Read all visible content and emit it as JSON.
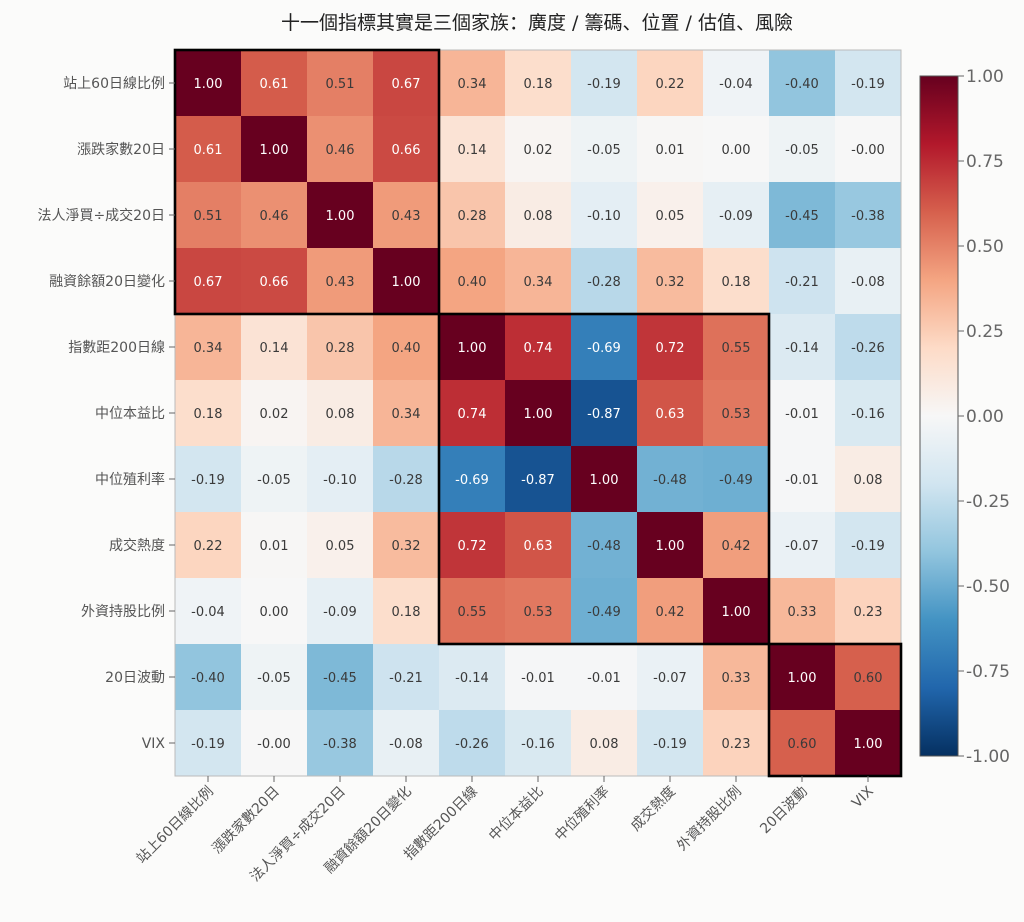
{
  "chart_data": {
    "type": "heatmap",
    "title": "十一個指標其實是三個家族：廣度 / 籌碼、位置 / 估值、風險",
    "row_labels": [
      "站上60日線比例",
      "漲跌家數20日",
      "法人淨買÷成交20日",
      "融資餘額20日變化",
      "指數距200日線",
      "中位本益比",
      "中位殖利率",
      "成交熱度",
      "外資持股比例",
      "20日波動",
      "VIX"
    ],
    "col_labels": [
      "站上60日線比例",
      "漲跌家數20日",
      "法人淨買÷成交20日",
      "融資餘額20日變化",
      "指數距200日線",
      "中位本益比",
      "中位殖利率",
      "成交熱度",
      "外資持股比例",
      "20日波動",
      "VIX"
    ],
    "values": [
      [
        1.0,
        0.61,
        0.51,
        0.67,
        0.34,
        0.18,
        -0.19,
        0.22,
        -0.04,
        -0.4,
        -0.19
      ],
      [
        0.61,
        1.0,
        0.46,
        0.66,
        0.14,
        0.02,
        -0.05,
        0.01,
        0.0,
        -0.05,
        -0.0
      ],
      [
        0.51,
        0.46,
        1.0,
        0.43,
        0.28,
        0.08,
        -0.1,
        0.05,
        -0.09,
        -0.45,
        -0.38
      ],
      [
        0.67,
        0.66,
        0.43,
        1.0,
        0.4,
        0.34,
        -0.28,
        0.32,
        0.18,
        -0.21,
        -0.08
      ],
      [
        0.34,
        0.14,
        0.28,
        0.4,
        1.0,
        0.74,
        -0.69,
        0.72,
        0.55,
        -0.14,
        -0.26
      ],
      [
        0.18,
        0.02,
        0.08,
        0.34,
        0.74,
        1.0,
        -0.87,
        0.63,
        0.53,
        -0.01,
        -0.16
      ],
      [
        -0.19,
        -0.05,
        -0.1,
        -0.28,
        -0.69,
        -0.87,
        1.0,
        -0.48,
        -0.49,
        -0.01,
        0.08
      ],
      [
        0.22,
        0.01,
        0.05,
        0.32,
        0.72,
        0.63,
        -0.48,
        1.0,
        0.42,
        -0.07,
        -0.19
      ],
      [
        -0.04,
        0.0,
        -0.09,
        0.18,
        0.55,
        0.53,
        -0.49,
        0.42,
        1.0,
        0.33,
        0.23
      ],
      [
        -0.4,
        -0.05,
        -0.45,
        -0.21,
        -0.14,
        -0.01,
        -0.01,
        -0.07,
        0.33,
        1.0,
        0.6
      ],
      [
        -0.19,
        -0.0,
        -0.38,
        -0.08,
        -0.26,
        -0.16,
        0.08,
        -0.19,
        0.23,
        0.6,
        1.0
      ]
    ],
    "value_labels": [
      [
        "1.00",
        "0.61",
        "0.51",
        "0.67",
        "0.34",
        "0.18",
        "-0.19",
        "0.22",
        "-0.04",
        "-0.40",
        "-0.19"
      ],
      [
        "0.61",
        "1.00",
        "0.46",
        "0.66",
        "0.14",
        "0.02",
        "-0.05",
        "0.01",
        "0.00",
        "-0.05",
        "-0.00"
      ],
      [
        "0.51",
        "0.46",
        "1.00",
        "0.43",
        "0.28",
        "0.08",
        "-0.10",
        "0.05",
        "-0.09",
        "-0.45",
        "-0.38"
      ],
      [
        "0.67",
        "0.66",
        "0.43",
        "1.00",
        "0.40",
        "0.34",
        "-0.28",
        "0.32",
        "0.18",
        "-0.21",
        "-0.08"
      ],
      [
        "0.34",
        "0.14",
        "0.28",
        "0.40",
        "1.00",
        "0.74",
        "-0.69",
        "0.72",
        "0.55",
        "-0.14",
        "-0.26"
      ],
      [
        "0.18",
        "0.02",
        "0.08",
        "0.34",
        "0.74",
        "1.00",
        "-0.87",
        "0.63",
        "0.53",
        "-0.01",
        "-0.16"
      ],
      [
        "-0.19",
        "-0.05",
        "-0.10",
        "-0.28",
        "-0.69",
        "-0.87",
        "1.00",
        "-0.48",
        "-0.49",
        "-0.01",
        "0.08"
      ],
      [
        "0.22",
        "0.01",
        "0.05",
        "0.32",
        "0.72",
        "0.63",
        "-0.48",
        "1.00",
        "0.42",
        "-0.07",
        "-0.19"
      ],
      [
        "-0.04",
        "0.00",
        "-0.09",
        "0.18",
        "0.55",
        "0.53",
        "-0.49",
        "0.42",
        "1.00",
        "0.33",
        "0.23"
      ],
      [
        "-0.40",
        "-0.05",
        "-0.45",
        "-0.21",
        "-0.14",
        "-0.01",
        "-0.01",
        "-0.07",
        "0.33",
        "1.00",
        "0.60"
      ],
      [
        "-0.19",
        "-0.00",
        "-0.38",
        "-0.08",
        "-0.26",
        "-0.16",
        "0.08",
        "-0.19",
        "0.23",
        "0.60",
        "1.00"
      ]
    ],
    "groups": [
      {
        "start": 0,
        "end": 3
      },
      {
        "start": 4,
        "end": 8
      },
      {
        "start": 9,
        "end": 10
      }
    ],
    "colorbar": {
      "colormap": "RdBu_r",
      "vmin": -1.0,
      "vmax": 1.0,
      "tick_values": [
        1.0,
        0.75,
        0.5,
        0.25,
        0.0,
        -0.25,
        -0.5,
        -0.75,
        -1.0
      ],
      "tick_labels": [
        "1.00",
        "0.75",
        "0.50",
        "0.25",
        "0.00",
        "-0.25",
        "-0.50",
        "-0.75",
        "-1.00"
      ]
    }
  }
}
